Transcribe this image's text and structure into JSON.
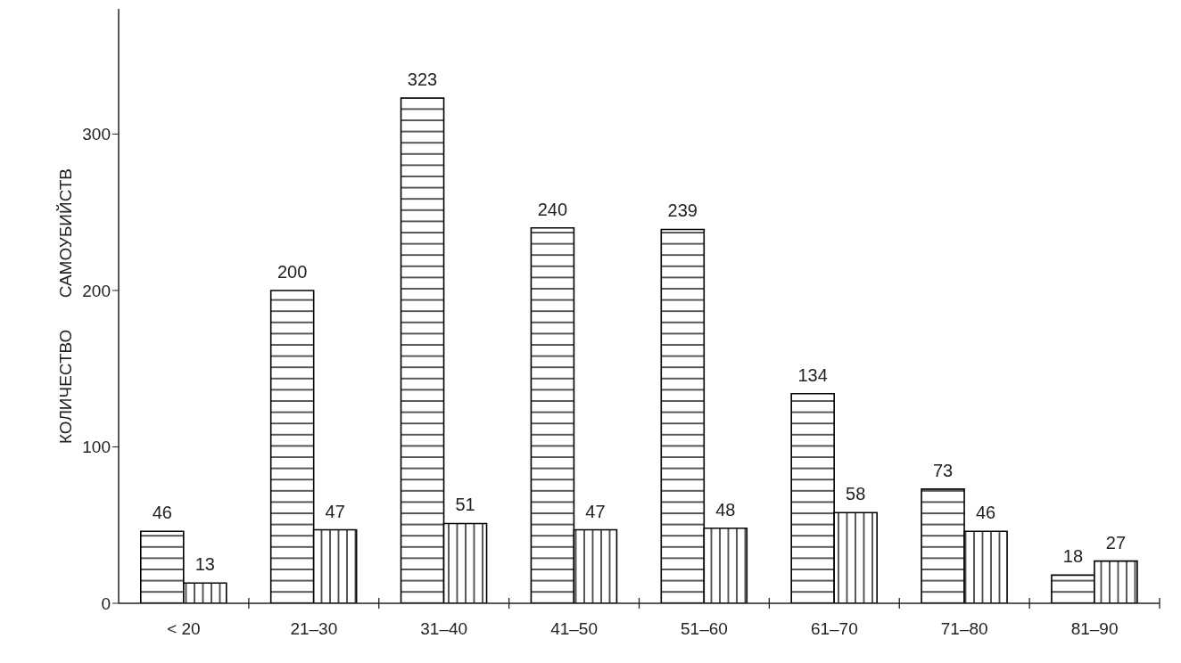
{
  "chart_data": {
    "type": "bar",
    "ylabel": "КОЛИЧЕСТВО САМОУБИЙСТВ",
    "categories": [
      "< 20",
      "21–30",
      "31–40",
      "41–50",
      "51–60",
      "61–70",
      "71–80",
      "81–90"
    ],
    "series": [
      {
        "color": "#000000",
        "values": [
          46,
          200,
          323,
          240,
          239,
          134,
          73,
          18
        ]
      },
      {
        "color": "#000000",
        "values": [
          13,
          47,
          51,
          47,
          48,
          58,
          46,
          27
        ]
      }
    ],
    "ylim": [
      0,
      380
    ],
    "yticks": [
      0,
      100,
      200,
      300
    ],
    "data_labels": true
  }
}
